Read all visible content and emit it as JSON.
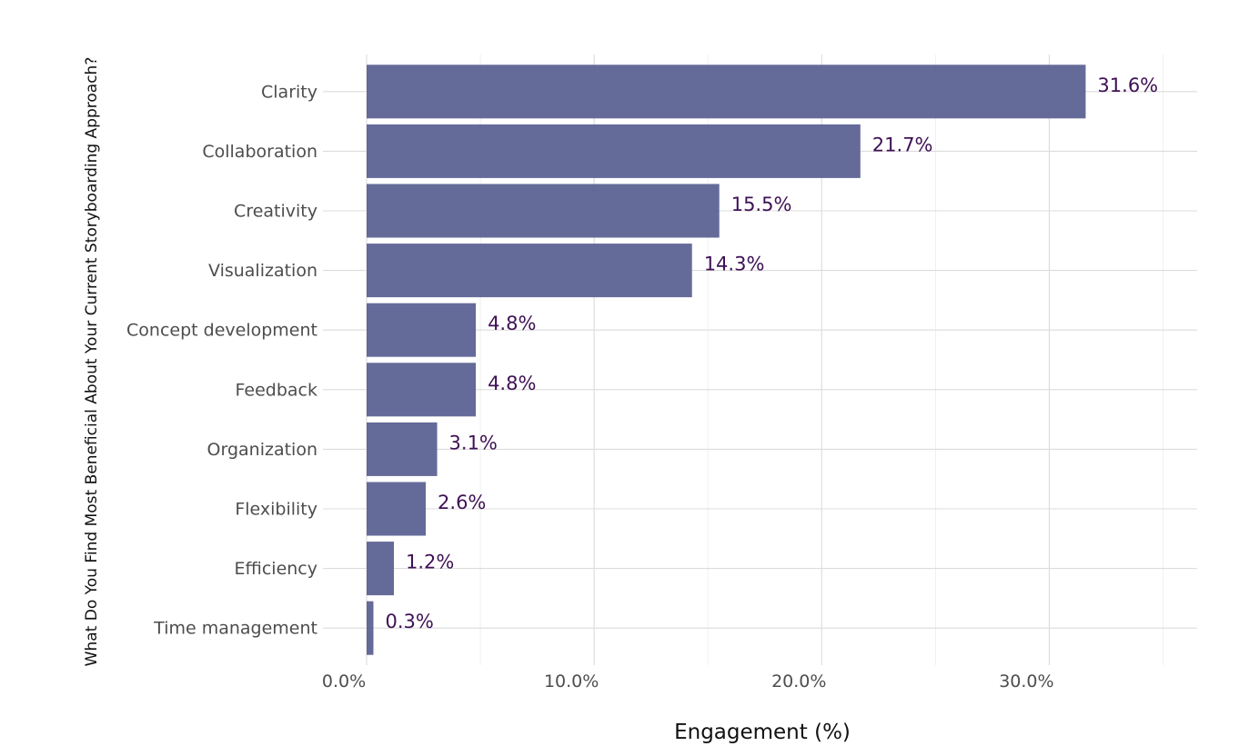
{
  "chart_data": {
    "type": "bar",
    "orientation": "horizontal",
    "title": "",
    "xlabel": "Engagement (%)",
    "ylabel": "What Do You Find Most Beneficial About Your Current Storyboarding Approach?",
    "categories": [
      "Clarity",
      "Collaboration",
      "Creativity",
      "Visualization",
      "Concept development",
      "Feedback",
      "Organization",
      "Flexibility",
      "Efficiency",
      "Time management"
    ],
    "values": [
      31.6,
      21.7,
      15.5,
      14.3,
      4.8,
      4.8,
      3.1,
      2.6,
      1.2,
      0.3
    ],
    "value_labels": [
      "31.6%",
      "21.7%",
      "15.5%",
      "14.3%",
      "4.8%",
      "4.8%",
      "3.1%",
      "2.6%",
      "1.2%",
      "0.3%"
    ],
    "xticks": [
      0,
      10,
      20,
      30
    ],
    "xtick_labels": [
      "0.0%",
      "10.0%",
      "20.0%",
      "30.0%"
    ],
    "xlim": [
      0,
      36.5
    ],
    "grid": true,
    "legend": "none",
    "bar_color": "#5d6393",
    "label_color": "#3f1155"
  }
}
